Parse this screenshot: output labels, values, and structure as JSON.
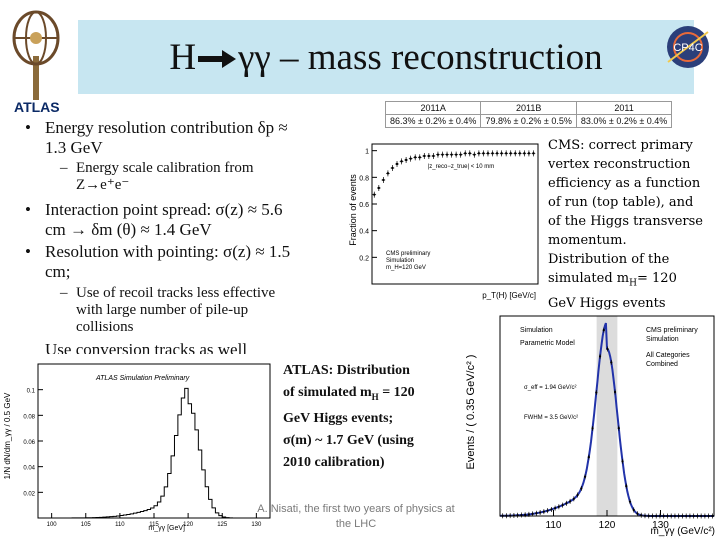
{
  "slide": {
    "title_left": "H",
    "title_right": "γγ – mass reconstruction",
    "atlas_label": "ATLAS",
    "bullets": [
      {
        "text": "Energy resolution contribution δp ≈",
        "cont": "1.3 GeV"
      },
      {
        "text": "Interaction point spread: σ(z) ≈ 5.6",
        "cont": "cm → δm (θ) ≈ 1.4 GeV"
      },
      {
        "text": "Resolution with pointing: σ(z) ≈ 1.5",
        "cont": "cm;"
      },
      {
        "text": "Use conversion tracks as well"
      }
    ],
    "subbullets": [
      {
        "line1": "Energy scale calibration from",
        "line2": "Z→e⁺e⁻"
      },
      {
        "line1": "Use of recoil tracks less effective",
        "line2": "with large number of pile-up",
        "line3": "collisions"
      }
    ],
    "cms_caption": [
      "CMS: correct primary",
      "vertex reconstruction",
      "efficiency as a function",
      "of run (top table), and",
      "of the Higgs transverse",
      "momentum.",
      "Distribution of the",
      "simulated m",
      "= 120",
      "GeV Higgs events"
    ],
    "cms_caption_sub": "H",
    "atlas_caption": [
      "ATLAS: Distribution",
      "of simulated m",
      "= 120",
      "GeV Higgs events;",
      "σ(m) ~ 1.7 GeV (using",
      "2010 calibration)"
    ],
    "atlas_caption_sub": "H",
    "footer_line1": "A. Nisati, the first two years of physics at",
    "footer_line2": "the LHC",
    "logo_text": "CP4C"
  },
  "chart_data": [
    {
      "type": "table",
      "name": "vertex efficiency per run",
      "columns": [
        "2011A",
        "2011B",
        "2011"
      ],
      "values": [
        "86.3% ± 0.2% ± 0.4%",
        "79.8% ± 0.2% ± 0.5%",
        "83.0% ± 0.2% ± 0.4%"
      ]
    },
    {
      "type": "scatter",
      "name": "CMS vertex efficiency vs pT(H)",
      "ylabel": "Fraction of events",
      "xlabel": "p_T(H) [GeV/c]",
      "legend": [
        "CMS preliminary",
        "Simulation",
        "m_H=120 GeV"
      ],
      "annotation": "|z_reco−z_true| < 10 mm",
      "ylim": [
        0,
        1.05
      ],
      "yticks": [
        0.2,
        0.4,
        0.6,
        0.8,
        1
      ],
      "x": [
        2,
        6,
        10,
        14,
        18,
        22,
        26,
        30,
        34,
        38,
        42,
        46,
        50,
        54,
        58,
        62,
        66,
        70,
        74,
        78,
        82,
        86,
        90,
        94,
        98,
        102,
        106,
        110,
        114,
        118,
        122,
        126,
        130,
        134,
        138,
        142
      ],
      "values": [
        0.67,
        0.72,
        0.78,
        0.83,
        0.87,
        0.9,
        0.92,
        0.93,
        0.94,
        0.95,
        0.95,
        0.96,
        0.96,
        0.96,
        0.97,
        0.97,
        0.97,
        0.97,
        0.97,
        0.97,
        0.98,
        0.98,
        0.97,
        0.98,
        0.98,
        0.98,
        0.98,
        0.98,
        0.98,
        0.98,
        0.98,
        0.98,
        0.98,
        0.98,
        0.98,
        0.98
      ]
    },
    {
      "type": "bar",
      "name": "ATLAS simulated m_gamma_gamma",
      "ylabel": "1/N dN/dm_γγ / 0.5 GeV",
      "xlabel": "m_γγ [GeV]",
      "legend": [
        "ATLAS Simulation Preliminary"
      ],
      "yticks": [
        0.1,
        0.08,
        0.06,
        0.04,
        0.02
      ],
      "xticks": [
        100,
        105,
        110,
        115,
        120,
        125,
        130
      ],
      "xlim": [
        98,
        132
      ],
      "ylim": [
        0,
        0.12
      ],
      "mean": 120,
      "sigma": 1.7
    },
    {
      "type": "scatter",
      "name": "CMS simulated m_gamma_gamma",
      "ylabel": "Events / ( 0.35 GeV/c² )",
      "xlabel": "m_γγ (GeV/c²)",
      "legend": [
        "Simulation",
        "Parametric Model",
        "All Categories",
        "Combined"
      ],
      "annotations": [
        "CMS preliminary",
        "Simulation",
        "σ_eff = 1.94 GeV/c²",
        "FWHM = 3.5 GeV/c²"
      ],
      "xticks": [
        110,
        120,
        130
      ],
      "xlim": [
        100,
        140
      ],
      "mean": 120,
      "sigma": 1.94
    }
  ]
}
